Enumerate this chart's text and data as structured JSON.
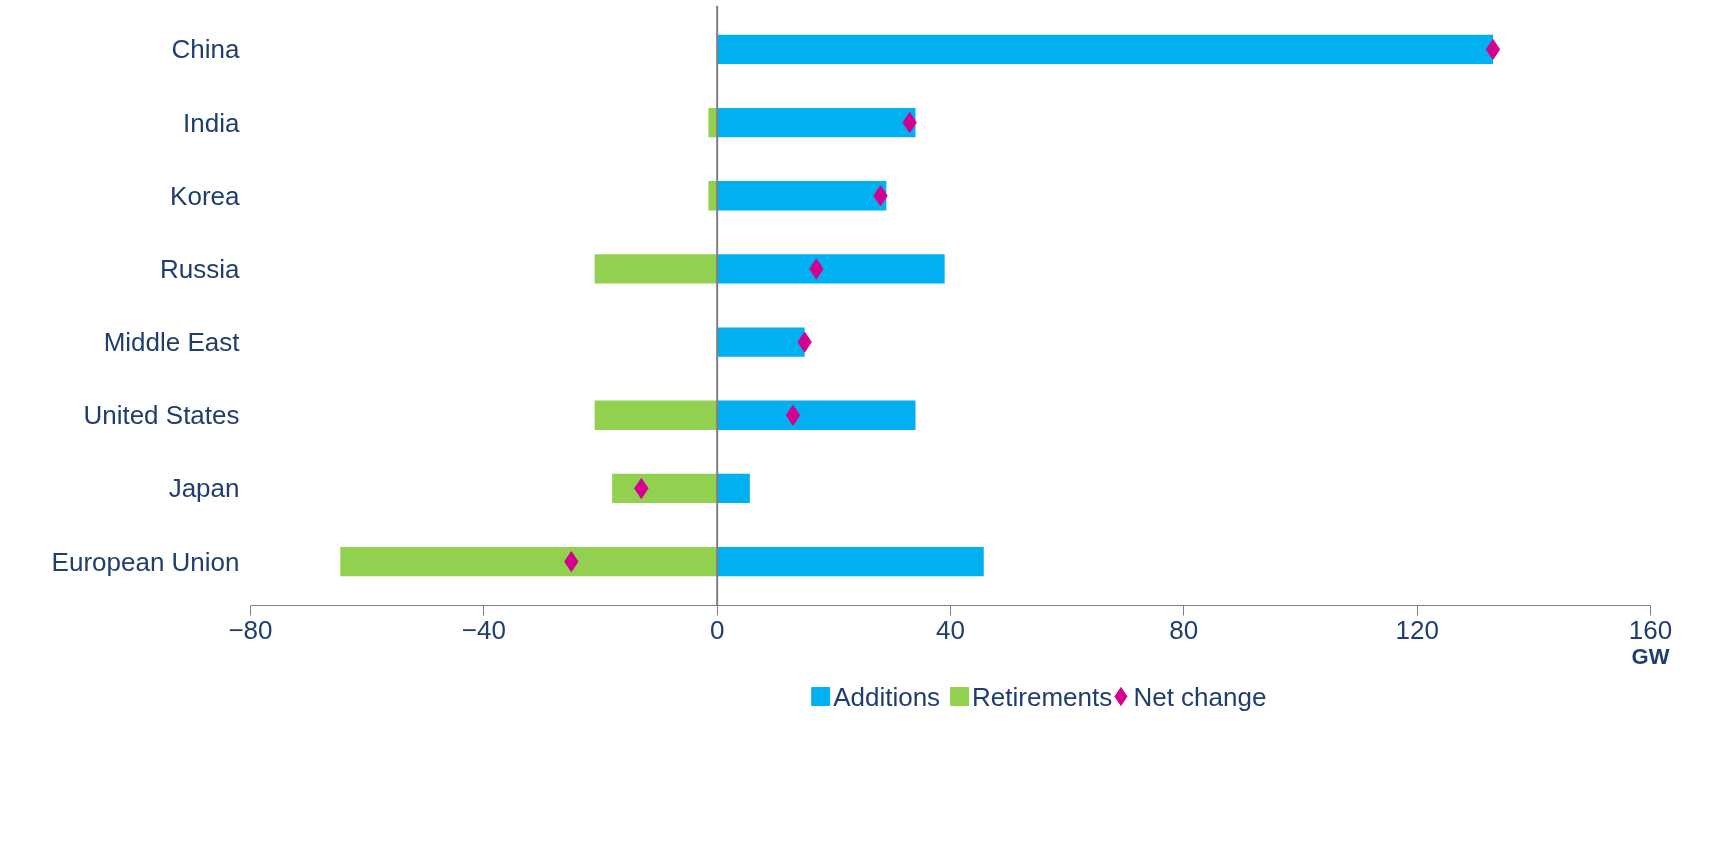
{
  "chart_data": {
    "type": "bar",
    "orientation": "horizontal",
    "categories": [
      "China",
      "India",
      "Korea",
      "Russia",
      "Middle East",
      "United States",
      "Japan",
      "European Union"
    ],
    "series": [
      {
        "name": "Additions",
        "color": "#00b0f0",
        "values": [
          133,
          34,
          29,
          39,
          15,
          34,
          5.6,
          45.7
        ]
      },
      {
        "name": "Retirements",
        "color": "#92d050",
        "values": [
          0,
          -1.5,
          -1.5,
          -21,
          0,
          -21,
          -18,
          -64.6
        ]
      },
      {
        "name": "Net change",
        "type": "scatter",
        "marker": "diamond",
        "color": "#d4008f",
        "values": [
          133,
          33,
          28,
          17,
          15,
          13,
          -13,
          -25
        ]
      }
    ],
    "stacked": true,
    "xlim": [
      -80,
      160
    ],
    "xticks": [
      -80,
      -40,
      0,
      40,
      80,
      120,
      160
    ],
    "xlabel": "GW",
    "grid": false,
    "legend": "bottom",
    "ref_lines": [
      {
        "axis": "x",
        "value": 0,
        "color": "#7f7f7f"
      }
    ]
  }
}
